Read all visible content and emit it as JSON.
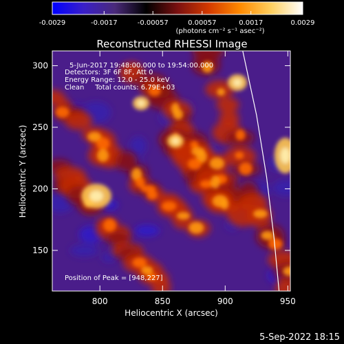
{
  "colorbar": {
    "tick_labels": [
      "-0.0029",
      "-0.0017",
      "-0.00057",
      "0.00057",
      "0.0017",
      "0.0029"
    ],
    "units_label": "(photons cm⁻² s⁻¹ asec⁻²)",
    "range": [
      -0.0029,
      0.0029
    ],
    "stops": [
      "#0000ff",
      "#3a1fc8",
      "#4a2a7a",
      "#000000",
      "#7a1010",
      "#d43a00",
      "#ff8a00",
      "#ffd060",
      "#ffffff"
    ]
  },
  "chart_data": {
    "type": "heatmap",
    "title": "Reconstructed RHESSI Image",
    "xlabel": "Heliocentric X (arcsec)",
    "ylabel": "Heliocentric Y (arcsec)",
    "xlim": [
      762,
      952
    ],
    "ylim": [
      117,
      312
    ],
    "xticks": [
      800,
      850,
      900,
      950
    ],
    "yticks": [
      150,
      200,
      250,
      300
    ],
    "peak": [
      948,
      227
    ],
    "limb_curve": [
      [
        914,
        312
      ],
      [
        925,
        260
      ],
      [
        933,
        210
      ],
      [
        939,
        160
      ],
      [
        943,
        117
      ]
    ],
    "colors": {
      "limb": "#ffffff",
      "background": "#000000",
      "low": "#3b1fa0",
      "high": "#ffe070"
    }
  },
  "annotations": {
    "line1": "5-Jun-2017 19:48:00.000 to 19:54:00.000",
    "line2": "Detectors: 3F 6F 8F, Att 0",
    "line3": "Energy Range: 12.0 - 25.0 keV",
    "line4": "Clean     Total counts: 6.79E+03",
    "peak_text": "Position of Peak = [948,227]"
  },
  "footer": {
    "timestamp": "5-Sep-2022 18:15"
  }
}
